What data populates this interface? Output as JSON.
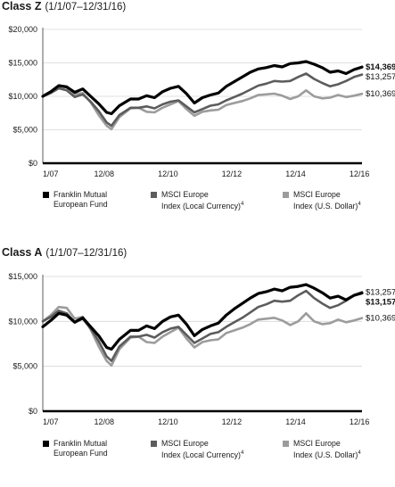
{
  "chart_data": [
    {
      "type": "line",
      "heading": {
        "class_label": "Class Z",
        "period": "(1/1/07–12/31/16)"
      },
      "ylim": [
        0,
        20000
      ],
      "yticks": [
        {
          "value": 0,
          "label": "$0"
        },
        {
          "value": 5000,
          "label": "$5,000"
        },
        {
          "value": 10000,
          "label": "$10,000"
        },
        {
          "value": 15000,
          "label": "$15,000"
        },
        {
          "value": 20000,
          "label": "$20,000"
        }
      ],
      "xlim": [
        2007.0,
        2017.0
      ],
      "xticks": [
        {
          "value": 2007.0,
          "label": "1/07"
        },
        {
          "value": 2008.92,
          "label": "12/08"
        },
        {
          "value": 2010.92,
          "label": "12/10"
        },
        {
          "value": 2012.92,
          "label": "12/12"
        },
        {
          "value": 2014.92,
          "label": "12/14"
        },
        {
          "value": 2016.92,
          "label": "12/16"
        }
      ],
      "series": [
        {
          "name": "Franklin Mutual European Fund",
          "color": "#000000",
          "width": 3.2,
          "end_label": "$14,369",
          "end_label_bold": true,
          "x": [
            2007.0,
            2007.25,
            2007.5,
            2007.75,
            2008.0,
            2008.25,
            2008.5,
            2008.75,
            2009.0,
            2009.15,
            2009.4,
            2009.75,
            2010.0,
            2010.25,
            2010.5,
            2010.75,
            2011.0,
            2011.25,
            2011.5,
            2011.75,
            2012.0,
            2012.25,
            2012.5,
            2012.75,
            2013.0,
            2013.25,
            2013.5,
            2013.75,
            2014.0,
            2014.25,
            2014.5,
            2014.75,
            2015.0,
            2015.25,
            2015.5,
            2015.75,
            2016.0,
            2016.25,
            2016.5,
            2016.75,
            2017.0
          ],
          "y": [
            10000,
            10700,
            11600,
            11400,
            10600,
            11100,
            10000,
            8900,
            7600,
            7400,
            8600,
            9600,
            9600,
            10100,
            9800,
            10700,
            11200,
            11500,
            10400,
            9000,
            9800,
            10200,
            10500,
            11500,
            12200,
            12900,
            13600,
            14100,
            14300,
            14600,
            14400,
            14900,
            15000,
            15200,
            14800,
            14300,
            13600,
            13800,
            13400,
            14000,
            14369
          ]
        },
        {
          "name": "MSCI Europe Index (Local Currency)",
          "name_note": "4",
          "color": "#5c5c5c",
          "width": 2.6,
          "end_label": "$13,257",
          "end_label_bold": false,
          "x": [
            2007.0,
            2007.25,
            2007.5,
            2007.75,
            2008.0,
            2008.25,
            2008.5,
            2008.75,
            2009.0,
            2009.15,
            2009.4,
            2009.75,
            2010.0,
            2010.25,
            2010.5,
            2010.75,
            2011.0,
            2011.25,
            2011.5,
            2011.75,
            2012.0,
            2012.25,
            2012.5,
            2012.75,
            2013.0,
            2013.25,
            2013.5,
            2013.75,
            2014.0,
            2014.25,
            2014.5,
            2014.75,
            2015.0,
            2015.25,
            2015.5,
            2015.75,
            2016.0,
            2016.25,
            2016.5,
            2016.75,
            2017.0
          ],
          "y": [
            10000,
            10500,
            11200,
            10900,
            9900,
            10300,
            9200,
            7800,
            6100,
            5600,
            7200,
            8300,
            8300,
            8500,
            8200,
            8800,
            9200,
            9400,
            8500,
            7600,
            8100,
            8600,
            8800,
            9400,
            9900,
            10400,
            11000,
            11600,
            11900,
            12300,
            12200,
            12300,
            12900,
            13400,
            12600,
            12000,
            11500,
            11800,
            12300,
            12900,
            13257
          ]
        },
        {
          "name": "MSCI Europe Index (U.S. Dollar)",
          "name_note": "4",
          "color": "#9c9c9c",
          "width": 2.6,
          "end_label": "$10,369",
          "end_label_bold": false,
          "x": [
            2007.0,
            2007.25,
            2007.5,
            2007.75,
            2008.0,
            2008.25,
            2008.5,
            2008.75,
            2009.0,
            2009.15,
            2009.4,
            2009.75,
            2010.0,
            2010.25,
            2010.5,
            2010.75,
            2011.0,
            2011.25,
            2011.5,
            2011.75,
            2012.0,
            2012.25,
            2012.5,
            2012.75,
            2013.0,
            2013.25,
            2013.5,
            2013.75,
            2014.0,
            2014.25,
            2014.5,
            2014.75,
            2015.0,
            2015.25,
            2015.5,
            2015.75,
            2016.0,
            2016.25,
            2016.5,
            2016.75,
            2017.0
          ],
          "y": [
            10000,
            10700,
            11600,
            11500,
            10300,
            10500,
            9100,
            7200,
            5600,
            5100,
            6900,
            8200,
            8300,
            7700,
            7600,
            8300,
            8800,
            9300,
            8100,
            7100,
            7700,
            7900,
            8000,
            8700,
            9000,
            9300,
            9700,
            10200,
            10300,
            10400,
            10100,
            9600,
            10000,
            10900,
            10000,
            9700,
            9800,
            10200,
            9900,
            10100,
            10369
          ]
        }
      ]
    },
    {
      "type": "line",
      "heading": {
        "class_label": "Class A",
        "period": "(1/1/07–12/31/16)"
      },
      "ylim": [
        0,
        15000
      ],
      "yticks": [
        {
          "value": 0,
          "label": "$0"
        },
        {
          "value": 5000,
          "label": "$5,000"
        },
        {
          "value": 10000,
          "label": "$10,000"
        },
        {
          "value": 15000,
          "label": "$15,000"
        }
      ],
      "xlim": [
        2007.0,
        2017.0
      ],
      "xticks": [
        {
          "value": 2007.0,
          "label": "1/07"
        },
        {
          "value": 2008.92,
          "label": "12/08"
        },
        {
          "value": 2010.92,
          "label": "12/10"
        },
        {
          "value": 2012.92,
          "label": "12/12"
        },
        {
          "value": 2014.92,
          "label": "12/14"
        },
        {
          "value": 2016.92,
          "label": "12/16"
        }
      ],
      "series": [
        {
          "name": "Franklin Mutual European Fund",
          "color": "#000000",
          "width": 3.2,
          "end_label": "$13,157",
          "end_label_bold": true,
          "x": [
            2007.0,
            2007.25,
            2007.5,
            2007.75,
            2008.0,
            2008.25,
            2008.5,
            2008.75,
            2009.0,
            2009.15,
            2009.4,
            2009.75,
            2010.0,
            2010.25,
            2010.5,
            2010.75,
            2011.0,
            2011.25,
            2011.5,
            2011.75,
            2012.0,
            2012.25,
            2012.5,
            2012.75,
            2013.0,
            2013.25,
            2013.5,
            2013.75,
            2014.0,
            2014.25,
            2014.5,
            2014.75,
            2015.0,
            2015.25,
            2015.5,
            2015.75,
            2016.0,
            2016.25,
            2016.5,
            2016.75,
            2017.0
          ],
          "y": [
            9400,
            10100,
            10900,
            10700,
            9900,
            10400,
            9400,
            8400,
            7100,
            6900,
            8000,
            9000,
            9000,
            9500,
            9200,
            10000,
            10500,
            10700,
            9700,
            8400,
            9100,
            9500,
            9800,
            10700,
            11400,
            12000,
            12600,
            13100,
            13300,
            13600,
            13400,
            13800,
            13900,
            14100,
            13700,
            13200,
            12600,
            12800,
            12400,
            12900,
            13157
          ]
        },
        {
          "name": "MSCI Europe Index (Local Currency)",
          "name_note": "4",
          "color": "#5c5c5c",
          "width": 2.6,
          "end_label": "$13,257",
          "end_label_bold": false,
          "x": [
            2007.0,
            2007.25,
            2007.5,
            2007.75,
            2008.0,
            2008.25,
            2008.5,
            2008.75,
            2009.0,
            2009.15,
            2009.4,
            2009.75,
            2010.0,
            2010.25,
            2010.5,
            2010.75,
            2011.0,
            2011.25,
            2011.5,
            2011.75,
            2012.0,
            2012.25,
            2012.5,
            2012.75,
            2013.0,
            2013.25,
            2013.5,
            2013.75,
            2014.0,
            2014.25,
            2014.5,
            2014.75,
            2015.0,
            2015.25,
            2015.5,
            2015.75,
            2016.0,
            2016.25,
            2016.5,
            2016.75,
            2017.0
          ],
          "y": [
            10000,
            10500,
            11200,
            10900,
            9900,
            10300,
            9200,
            7800,
            6100,
            5600,
            7200,
            8300,
            8300,
            8500,
            8200,
            8800,
            9200,
            9400,
            8500,
            7600,
            8100,
            8600,
            8800,
            9400,
            9900,
            10400,
            11000,
            11600,
            11900,
            12300,
            12200,
            12300,
            12900,
            13400,
            12600,
            12000,
            11500,
            11800,
            12300,
            12900,
            13257
          ]
        },
        {
          "name": "MSCI Europe Index (U.S. Dollar)",
          "name_note": "4",
          "color": "#9c9c9c",
          "width": 2.6,
          "end_label": "$10,369",
          "end_label_bold": false,
          "x": [
            2007.0,
            2007.25,
            2007.5,
            2007.75,
            2008.0,
            2008.25,
            2008.5,
            2008.75,
            2009.0,
            2009.15,
            2009.4,
            2009.75,
            2010.0,
            2010.25,
            2010.5,
            2010.75,
            2011.0,
            2011.25,
            2011.5,
            2011.75,
            2012.0,
            2012.25,
            2012.5,
            2012.75,
            2013.0,
            2013.25,
            2013.5,
            2013.75,
            2014.0,
            2014.25,
            2014.5,
            2014.75,
            2015.0,
            2015.25,
            2015.5,
            2015.75,
            2016.0,
            2016.25,
            2016.5,
            2016.75,
            2017.0
          ],
          "y": [
            10000,
            10700,
            11600,
            11500,
            10300,
            10500,
            9100,
            7200,
            5600,
            5100,
            6900,
            8200,
            8300,
            7700,
            7600,
            8300,
            8800,
            9300,
            8100,
            7100,
            7700,
            7900,
            8000,
            8700,
            9000,
            9300,
            9700,
            10200,
            10300,
            10400,
            10100,
            9600,
            10000,
            10900,
            10000,
            9700,
            9800,
            10200,
            9900,
            10100,
            10369
          ]
        }
      ]
    }
  ],
  "legend": [
    {
      "line1": "Franklin Mutual",
      "line2": "European Fund",
      "note": "",
      "color": "#000000"
    },
    {
      "line1": "MSCI Europe",
      "line2": "Index (Local Currency)",
      "note": "4",
      "color": "#5c5c5c"
    },
    {
      "line1": "MSCI Europe",
      "line2": "Index (U.S. Dollar)",
      "note": "4",
      "color": "#9c9c9c"
    }
  ]
}
